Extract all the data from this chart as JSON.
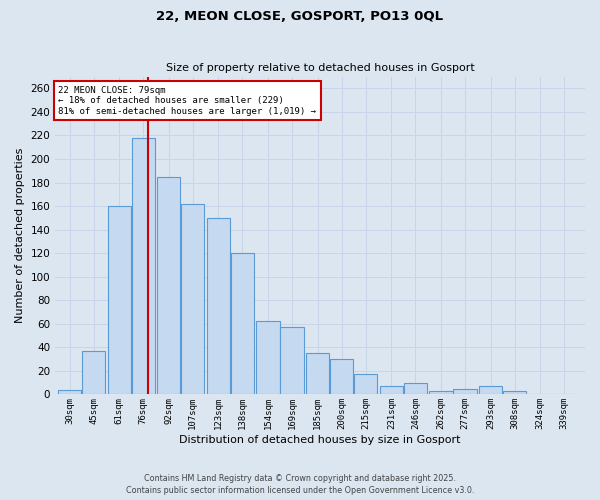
{
  "title_line1": "22, MEON CLOSE, GOSPORT, PO13 0QL",
  "title_line2": "Size of property relative to detached houses in Gosport",
  "xlabel": "Distribution of detached houses by size in Gosport",
  "ylabel": "Number of detached properties",
  "bar_heights": [
    4,
    37,
    160,
    218,
    185,
    162,
    150,
    120,
    62,
    57,
    35,
    30,
    17,
    7,
    10,
    3,
    5,
    7,
    3,
    0,
    0
  ],
  "bar_labels": [
    "30sqm",
    "45sqm",
    "61sqm",
    "76sqm",
    "92sqm",
    "107sqm",
    "123sqm",
    "138sqm",
    "154sqm",
    "169sqm",
    "185sqm",
    "200sqm",
    "215sqm",
    "231sqm",
    "246sqm",
    "262sqm",
    "277sqm",
    "293sqm",
    "308sqm",
    "324sqm",
    "339sqm"
  ],
  "bar_centers": [
    30,
    45,
    61,
    76,
    92,
    107,
    123,
    138,
    154,
    169,
    185,
    200,
    215,
    231,
    246,
    262,
    277,
    293,
    308,
    324,
    339
  ],
  "bar_width": 14.5,
  "bar_color": "#c5d9f1",
  "bar_edge_color": "#5b9bd5",
  "grid_color": "#c8d4e8",
  "background_color": "#dce6f1",
  "vline_x": 79,
  "vline_color": "#cc0000",
  "annotation_text": "22 MEON CLOSE: 79sqm\n← 18% of detached houses are smaller (229)\n81% of semi-detached houses are larger (1,019) →",
  "annotation_box_facecolor": "#ffffff",
  "annotation_box_edgecolor": "#cc0000",
  "ylim": [
    0,
    270
  ],
  "yticks": [
    0,
    20,
    40,
    60,
    80,
    100,
    120,
    140,
    160,
    180,
    200,
    220,
    240,
    260
  ],
  "xlim_left": 21,
  "xlim_right": 352,
  "footnote": "Contains HM Land Registry data © Crown copyright and database right 2025.\nContains public sector information licensed under the Open Government Licence v3.0."
}
